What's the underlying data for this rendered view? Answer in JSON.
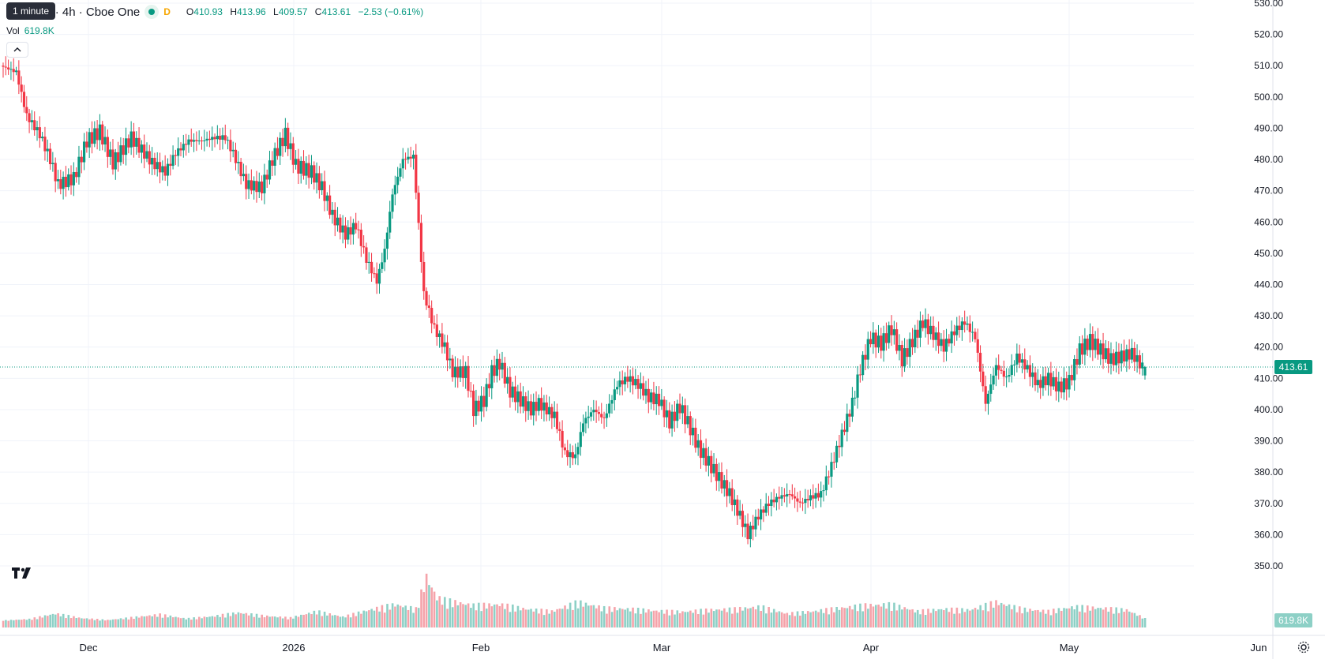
{
  "header": {
    "title": "oft Corp. · 4h · Cboe One",
    "tooltip": "1 minute",
    "market_status_letter": "D",
    "open_label": "O",
    "open": "410.93",
    "high_label": "H",
    "high": "413.96",
    "low_label": "L",
    "low": "409.57",
    "close_label": "C",
    "close": "413.61",
    "change": "−2.53 (−0.61%)"
  },
  "volume_legend": {
    "label": "Vol",
    "value": "619.8K"
  },
  "collapse_icon": "chevron-up-icon",
  "logo": "tradingview-logo",
  "settings_icon": "gear-icon",
  "colors": {
    "up": "#089981",
    "down": "#f23645",
    "vol_up": "#8dd0c6",
    "vol_down": "#f5a3aa",
    "grid": "#f0f3fa"
  },
  "chart_data": {
    "type": "candlestick",
    "timeframe": "4h",
    "y_ticks": [
      "530.00",
      "520.00",
      "510.00",
      "500.00",
      "490.00",
      "480.00",
      "470.00",
      "460.00",
      "450.00",
      "440.00",
      "430.00",
      "420.00",
      "410.00",
      "400.00",
      "390.00",
      "380.00",
      "370.00",
      "360.00",
      "350.00"
    ],
    "ylim": [
      350,
      530
    ],
    "x_ticks": [
      "Dec",
      "2026",
      "Feb",
      "Mar",
      "Apr",
      "May",
      "Jun"
    ],
    "last_price": "413.61",
    "last_volume": "619.8K",
    "close_path": [
      [
        0,
        510
      ],
      [
        6,
        508
      ],
      [
        10,
        494
      ],
      [
        15,
        488
      ],
      [
        19,
        480
      ],
      [
        22,
        472
      ],
      [
        28,
        474
      ],
      [
        33,
        486
      ],
      [
        38,
        489
      ],
      [
        43,
        479
      ],
      [
        50,
        487
      ],
      [
        54,
        483
      ],
      [
        58,
        479
      ],
      [
        63,
        476
      ],
      [
        67,
        482
      ],
      [
        72,
        486
      ],
      [
        77,
        486
      ],
      [
        82,
        487
      ],
      [
        86,
        487
      ],
      [
        89,
        482
      ],
      [
        94,
        472
      ],
      [
        100,
        471
      ],
      [
        104,
        480
      ],
      [
        109,
        488
      ],
      [
        113,
        478
      ],
      [
        119,
        476
      ],
      [
        123,
        471
      ],
      [
        127,
        462
      ],
      [
        132,
        456
      ],
      [
        136,
        459
      ],
      [
        140,
        448
      ],
      [
        144,
        441
      ],
      [
        147,
        451
      ],
      [
        150,
        469
      ],
      [
        154,
        480
      ],
      [
        158,
        481
      ],
      [
        162,
        437
      ],
      [
        166,
        426
      ],
      [
        170,
        420
      ],
      [
        173,
        412
      ],
      [
        178,
        412
      ],
      [
        181,
        400
      ],
      [
        185,
        403
      ],
      [
        188,
        412
      ],
      [
        191,
        415
      ],
      [
        195,
        406
      ],
      [
        199,
        403
      ],
      [
        203,
        400
      ],
      [
        206,
        402
      ],
      [
        209,
        400
      ],
      [
        212,
        398
      ],
      [
        216,
        386
      ],
      [
        220,
        385
      ],
      [
        223,
        396
      ],
      [
        227,
        400
      ],
      [
        231,
        397
      ],
      [
        236,
        408
      ],
      [
        240,
        410
      ],
      [
        244,
        408
      ],
      [
        248,
        404
      ],
      [
        252,
        403
      ],
      [
        256,
        396
      ],
      [
        260,
        401
      ],
      [
        264,
        394
      ],
      [
        267,
        388
      ],
      [
        271,
        383
      ],
      [
        275,
        378
      ],
      [
        279,
        373
      ],
      [
        283,
        366
      ],
      [
        286,
        360
      ],
      [
        290,
        366
      ],
      [
        294,
        370
      ],
      [
        298,
        372
      ],
      [
        302,
        373
      ],
      [
        306,
        370
      ],
      [
        310,
        372
      ],
      [
        314,
        373
      ],
      [
        318,
        382
      ],
      [
        322,
        392
      ],
      [
        326,
        402
      ],
      [
        329,
        413
      ],
      [
        333,
        423
      ],
      [
        337,
        421
      ],
      [
        341,
        426
      ],
      [
        345,
        416
      ],
      [
        349,
        422
      ],
      [
        353,
        428
      ],
      [
        357,
        424
      ],
      [
        361,
        420
      ],
      [
        365,
        425
      ],
      [
        369,
        428
      ],
      [
        373,
        423
      ],
      [
        377,
        402
      ],
      [
        381,
        414
      ],
      [
        385,
        410
      ],
      [
        389,
        417
      ],
      [
        393,
        413
      ],
      [
        397,
        408
      ],
      [
        401,
        410
      ],
      [
        405,
        407
      ],
      [
        409,
        409
      ],
      [
        413,
        419
      ],
      [
        417,
        422
      ],
      [
        421,
        419
      ],
      [
        425,
        416
      ],
      [
        429,
        417
      ],
      [
        433,
        418
      ],
      [
        437,
        413.61
      ]
    ],
    "volume": [
      [
        0,
        5,
        "up"
      ],
      [
        10,
        8,
        "down"
      ],
      [
        20,
        20,
        "up"
      ],
      [
        30,
        10,
        "down"
      ],
      [
        40,
        6,
        "up"
      ],
      [
        50,
        12,
        "down"
      ],
      [
        60,
        18,
        "up"
      ],
      [
        70,
        9,
        "down"
      ],
      [
        80,
        14,
        "up"
      ],
      [
        90,
        22,
        "down"
      ],
      [
        100,
        15,
        "up"
      ],
      [
        110,
        11,
        "down"
      ],
      [
        120,
        25,
        "up"
      ],
      [
        130,
        13,
        "down"
      ],
      [
        140,
        28,
        "down"
      ],
      [
        150,
        40,
        "up"
      ],
      [
        158,
        30,
        "up"
      ],
      [
        162,
        100,
        "down"
      ],
      [
        166,
        55,
        "down"
      ],
      [
        170,
        48,
        "down"
      ],
      [
        180,
        38,
        "down"
      ],
      [
        190,
        40,
        "up"
      ],
      [
        200,
        30,
        "down"
      ],
      [
        210,
        25,
        "up"
      ],
      [
        220,
        45,
        "down"
      ],
      [
        230,
        32,
        "up"
      ],
      [
        240,
        30,
        "down"
      ],
      [
        250,
        26,
        "up"
      ],
      [
        260,
        24,
        "down"
      ],
      [
        270,
        28,
        "down"
      ],
      [
        280,
        30,
        "down"
      ],
      [
        290,
        35,
        "down"
      ],
      [
        300,
        20,
        "up"
      ],
      [
        310,
        25,
        "down"
      ],
      [
        320,
        32,
        "up"
      ],
      [
        330,
        38,
        "up"
      ],
      [
        340,
        40,
        "down"
      ],
      [
        350,
        25,
        "up"
      ],
      [
        360,
        30,
        "up"
      ],
      [
        370,
        28,
        "down"
      ],
      [
        380,
        45,
        "down"
      ],
      [
        390,
        30,
        "up"
      ],
      [
        400,
        25,
        "down"
      ],
      [
        410,
        35,
        "up"
      ],
      [
        420,
        32,
        "down"
      ],
      [
        430,
        28,
        "down"
      ],
      [
        437,
        10,
        "up"
      ]
    ]
  }
}
